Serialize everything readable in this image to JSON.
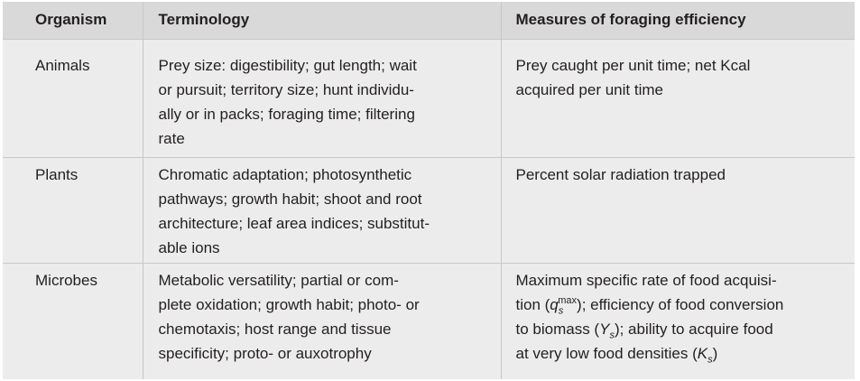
{
  "table": {
    "headers": {
      "organism": "Organism",
      "terminology": "Terminology",
      "measures": "Measures of foraging efficiency"
    },
    "rows": [
      {
        "organism": "Animals",
        "terminology_lines": [
          "Prey size: digestibility; gut length; wait",
          "or pursuit; territory size; hunt individu-",
          "ally or in packs; foraging time; filtering",
          "rate"
        ],
        "measures_lines": [
          "Prey caught per unit time; net Kcal",
          "acquired per unit time"
        ]
      },
      {
        "organism": "Plants",
        "terminology_lines": [
          "Chromatic adaptation; photosynthetic",
          "pathways; growth habit; shoot and root",
          "architecture; leaf area indices; substitut-",
          "able ions"
        ],
        "measures_lines": [
          "Percent solar radiation trapped"
        ]
      },
      {
        "organism": "Microbes",
        "terminology_lines": [
          "Metabolic versatility; partial or com-",
          "plete oxidation; growth habit; photo- or",
          "chemotaxis; host range and tissue",
          "specificity; proto- or auxotrophy"
        ],
        "measures": {
          "line1": "Maximum specific rate of food acquisi-",
          "line2_pre": "tion (",
          "line2_q": "q",
          "line2_sub": "s",
          "line2_sup": "max",
          "line2_post": "); efficiency of food conversion",
          "line3_pre": "to biomass (",
          "line3_y": "Y",
          "line3_sub": "s",
          "line3_post": "); ability to acquire food",
          "line4_pre": "at very low food densities (",
          "line4_k": "K",
          "line4_sub": "s",
          "line4_post": ")"
        }
      }
    ]
  },
  "colors": {
    "header_bg": "#d9d9d9",
    "body_bg": "#ececec",
    "text": "#231f20",
    "rule": "#c8c8c8"
  }
}
